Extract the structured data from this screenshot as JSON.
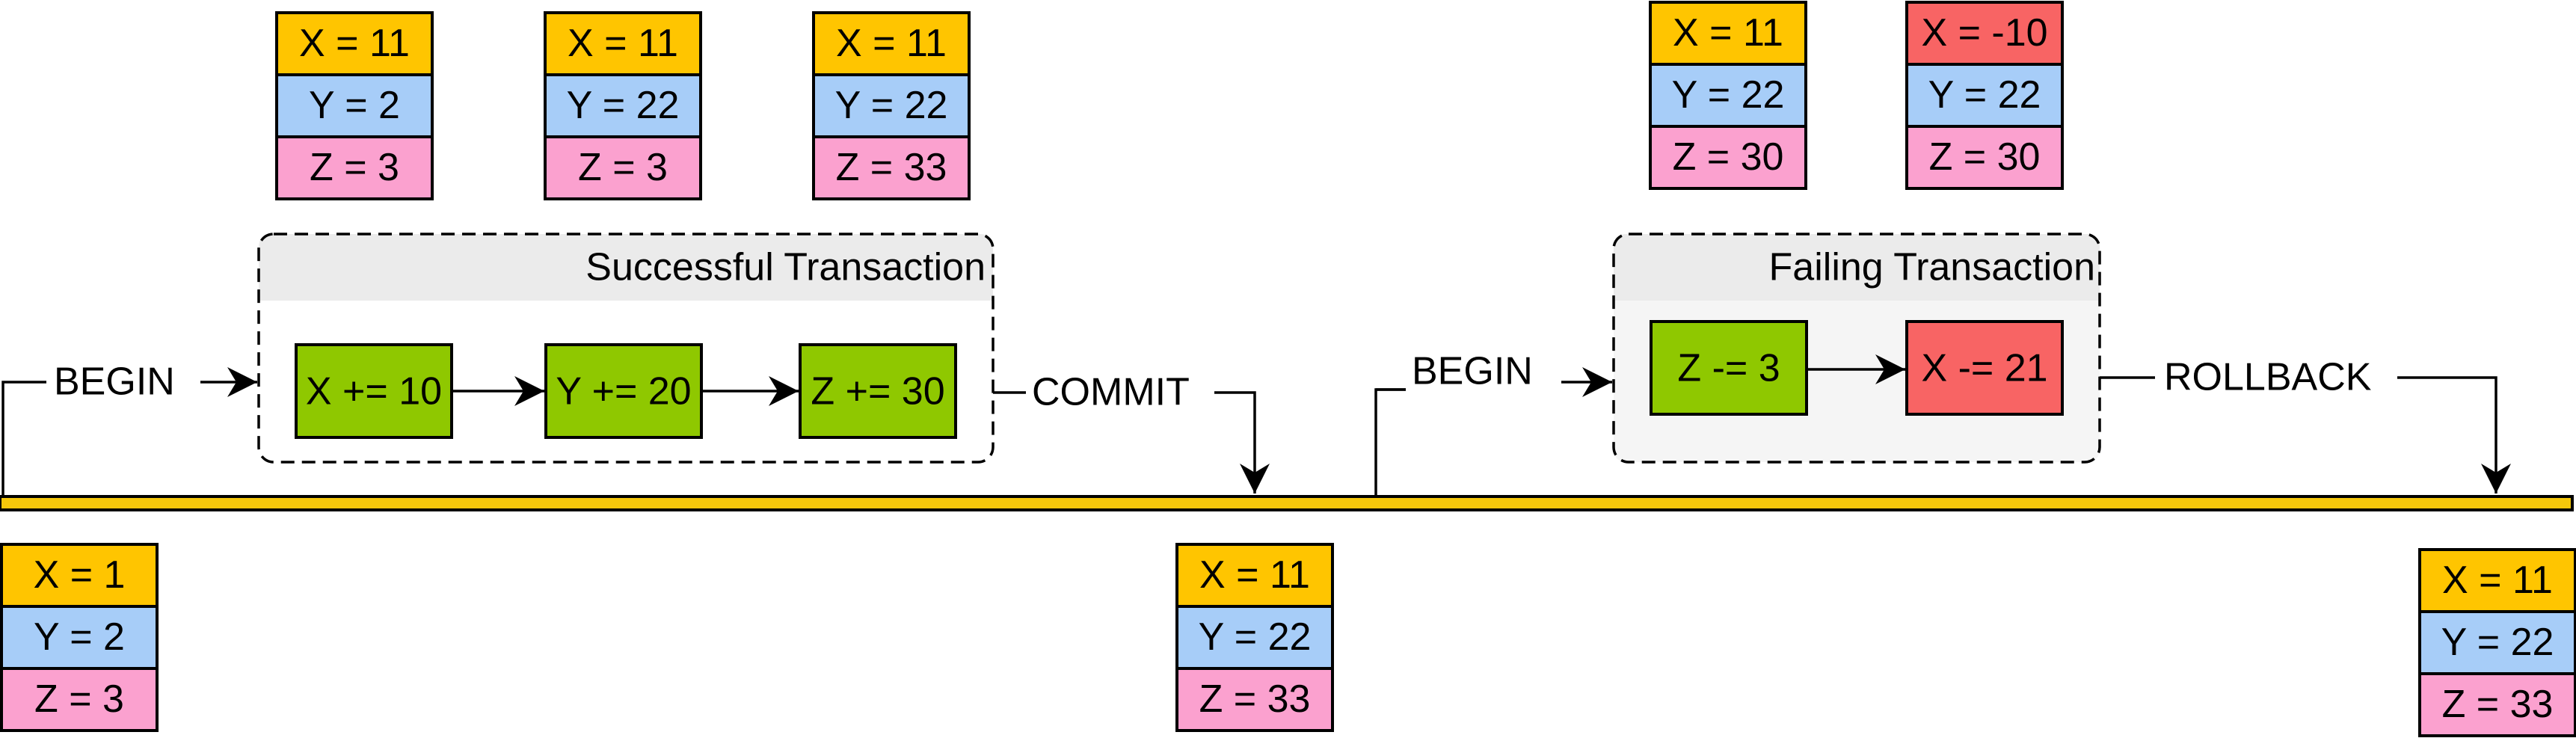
{
  "colors": {
    "x_cell": "#ffc500",
    "y_cell": "#a7cdf8",
    "z_cell": "#fba1cf",
    "error_cell": "#f86464",
    "op_ok": "#8fc800",
    "op_fail": "#f86464",
    "timeline": "#f5c70b",
    "group_fill": "#f5f5f5",
    "group_header": "#ebebeb"
  },
  "states": {
    "initial": [
      "X = 1",
      "Y = 2",
      "Z = 3"
    ],
    "after_x": [
      "X = 11",
      "Y = 2",
      "Z = 3"
    ],
    "after_y": [
      "X = 11",
      "Y = 22",
      "Z = 3"
    ],
    "after_z": [
      "X = 11",
      "Y = 22",
      "Z = 33"
    ],
    "after_commit": [
      "X = 11",
      "Y = 22",
      "Z = 33"
    ],
    "fail_step1": [
      "X = 11",
      "Y = 22",
      "Z = 30"
    ],
    "fail_step2": [
      "X = -10",
      "Y = 22",
      "Z = 30"
    ],
    "after_rollback": [
      "X = 11",
      "Y = 22",
      "Z = 33"
    ]
  },
  "successful": {
    "title": "Successful Transaction",
    "begin_label": "BEGIN",
    "end_label": "COMMIT",
    "ops": [
      "X += 10",
      "Y += 20",
      "Z += 30"
    ]
  },
  "failing": {
    "title": "Failing Transaction",
    "begin_label": "BEGIN",
    "end_label": "ROLLBACK",
    "ops": [
      "Z -= 3",
      "X -= 21"
    ]
  }
}
